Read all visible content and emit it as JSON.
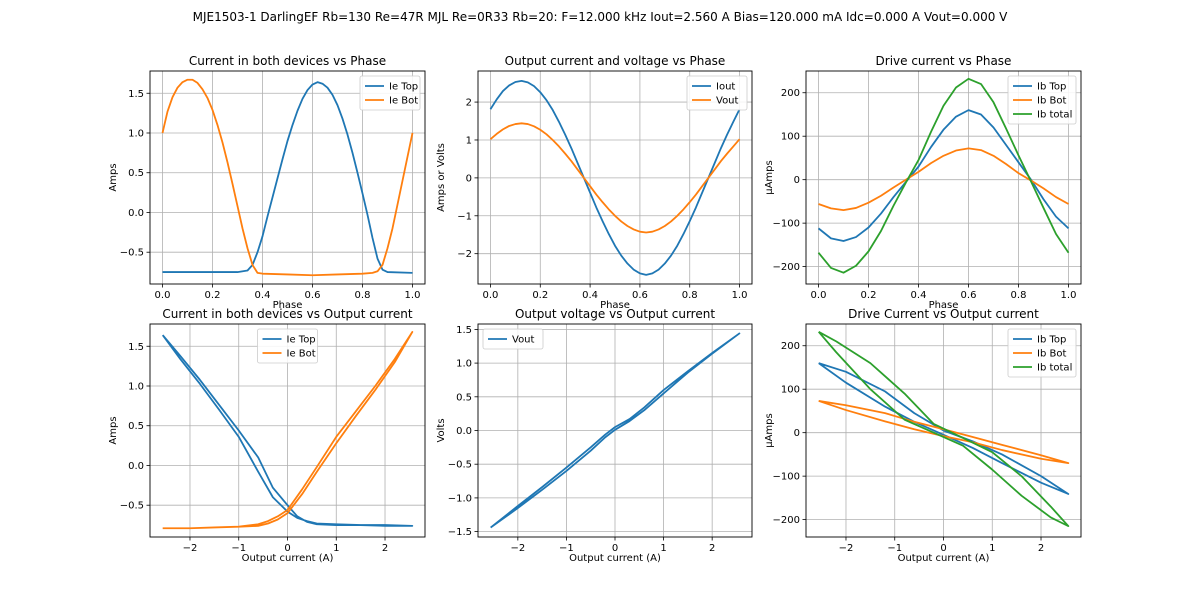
{
  "figure": {
    "suptitle": "MJE1503-1 DarlingEF Rb=130 Re=47R MJL Re=0R33 Rb=20: F=12.000 kHz Iout=2.560 A Bias=120.000 mA Idc=0.000 A Vout=0.000 V"
  },
  "chart_data": [
    {
      "type": "line",
      "title": "Current in both devices vs Phase",
      "xlabel": "Phase",
      "ylabel": "Amps",
      "xlim": [
        -0.05,
        1.05
      ],
      "ylim": [
        -0.9,
        1.78
      ],
      "xticks": [
        0.0,
        0.2,
        0.4,
        0.6,
        0.8,
        1.0
      ],
      "yticks": [
        -0.5,
        0.0,
        0.5,
        1.0,
        1.5
      ],
      "tick_decimals": [
        1,
        1
      ],
      "grid": true,
      "legend_position": "top-right",
      "series": [
        {
          "name": "Ie Top",
          "color": "#1f77b4",
          "x": [
            0,
            0.1,
            0.2,
            0.3,
            0.34,
            0.36,
            0.38,
            0.4,
            0.42,
            0.44,
            0.46,
            0.48,
            0.5,
            0.52,
            0.54,
            0.56,
            0.58,
            0.6,
            0.62,
            0.64,
            0.66,
            0.68,
            0.7,
            0.72,
            0.74,
            0.76,
            0.78,
            0.8,
            0.82,
            0.84,
            0.86,
            0.88,
            0.9,
            1.0
          ],
          "y": [
            -0.75,
            -0.75,
            -0.75,
            -0.75,
            -0.73,
            -0.66,
            -0.5,
            -0.3,
            -0.05,
            0.19,
            0.43,
            0.67,
            0.9,
            1.1,
            1.28,
            1.43,
            1.54,
            1.61,
            1.64,
            1.62,
            1.57,
            1.48,
            1.35,
            1.18,
            0.98,
            0.75,
            0.5,
            0.24,
            -0.03,
            -0.32,
            -0.58,
            -0.72,
            -0.75,
            -0.76
          ]
        },
        {
          "name": "Ie Bot",
          "color": "#ff7f0e",
          "x": [
            0,
            0.02,
            0.04,
            0.06,
            0.08,
            0.1,
            0.12,
            0.14,
            0.16,
            0.18,
            0.2,
            0.22,
            0.24,
            0.26,
            0.28,
            0.3,
            0.32,
            0.34,
            0.36,
            0.38,
            0.4,
            0.5,
            0.6,
            0.7,
            0.8,
            0.84,
            0.86,
            0.88,
            0.9,
            0.92,
            0.94,
            0.96,
            0.98,
            1.0
          ],
          "y": [
            1.0,
            1.27,
            1.45,
            1.57,
            1.64,
            1.67,
            1.67,
            1.63,
            1.55,
            1.44,
            1.29,
            1.1,
            0.88,
            0.63,
            0.36,
            0.08,
            -0.2,
            -0.45,
            -0.66,
            -0.76,
            -0.77,
            -0.78,
            -0.79,
            -0.78,
            -0.77,
            -0.76,
            -0.74,
            -0.66,
            -0.45,
            -0.2,
            0.1,
            0.4,
            0.7,
            1.0
          ]
        }
      ]
    },
    {
      "type": "line",
      "title": "Output current and voltage vs Phase",
      "xlabel": "Phase",
      "ylabel": "Amps or Volts",
      "xlim": [
        -0.05,
        1.05
      ],
      "ylim": [
        -2.8,
        2.82
      ],
      "xticks": [
        0.0,
        0.2,
        0.4,
        0.6,
        0.8,
        1.0
      ],
      "yticks": [
        -2,
        -1,
        0,
        1,
        2
      ],
      "tick_decimals": [
        1,
        0
      ],
      "grid": true,
      "legend_position": "top-right",
      "series": [
        {
          "name": "Iout",
          "color": "#1f77b4",
          "x": [
            0,
            0.025,
            0.05,
            0.075,
            0.1,
            0.125,
            0.15,
            0.175,
            0.2,
            0.225,
            0.25,
            0.275,
            0.3,
            0.325,
            0.35,
            0.375,
            0.4,
            0.425,
            0.45,
            0.475,
            0.5,
            0.525,
            0.55,
            0.575,
            0.6,
            0.625,
            0.65,
            0.675,
            0.7,
            0.725,
            0.75,
            0.775,
            0.8,
            0.825,
            0.85,
            0.875,
            0.9,
            0.925,
            0.95,
            0.975,
            1.0
          ],
          "y": [
            1.81,
            2.07,
            2.29,
            2.44,
            2.53,
            2.56,
            2.52,
            2.42,
            2.26,
            2.05,
            1.79,
            1.48,
            1.14,
            0.78,
            0.39,
            0.0,
            -0.39,
            -0.78,
            -1.14,
            -1.48,
            -1.79,
            -2.05,
            -2.26,
            -2.42,
            -2.52,
            -2.56,
            -2.52,
            -2.42,
            -2.26,
            -2.05,
            -1.79,
            -1.48,
            -1.14,
            -0.78,
            -0.39,
            0.0,
            0.39,
            0.78,
            1.14,
            1.48,
            1.81
          ]
        },
        {
          "name": "Vout",
          "color": "#ff7f0e",
          "x": [
            0,
            0.025,
            0.05,
            0.075,
            0.1,
            0.125,
            0.15,
            0.175,
            0.2,
            0.225,
            0.25,
            0.275,
            0.3,
            0.325,
            0.35,
            0.375,
            0.4,
            0.425,
            0.45,
            0.475,
            0.5,
            0.525,
            0.55,
            0.575,
            0.6,
            0.625,
            0.65,
            0.675,
            0.7,
            0.725,
            0.75,
            0.775,
            0.8,
            0.825,
            0.85,
            0.875,
            0.9,
            0.925,
            0.95,
            0.975,
            1.0
          ],
          "y": [
            1.02,
            1.16,
            1.28,
            1.37,
            1.42,
            1.44,
            1.42,
            1.36,
            1.27,
            1.15,
            1.0,
            0.83,
            0.64,
            0.44,
            0.22,
            0.0,
            -0.22,
            -0.44,
            -0.64,
            -0.83,
            -1.0,
            -1.15,
            -1.27,
            -1.36,
            -1.42,
            -1.44,
            -1.42,
            -1.36,
            -1.27,
            -1.15,
            -1.0,
            -0.83,
            -0.64,
            -0.44,
            -0.22,
            0.0,
            0.22,
            0.44,
            0.64,
            0.83,
            1.02
          ]
        }
      ]
    },
    {
      "type": "line",
      "title": "Drive current vs Phase",
      "xlabel": "Phase",
      "ylabel": "µAmps",
      "xlim": [
        -0.05,
        1.05
      ],
      "ylim": [
        -240,
        250
      ],
      "xticks": [
        0.0,
        0.2,
        0.4,
        0.6,
        0.8,
        1.0
      ],
      "yticks": [
        -200,
        -100,
        0,
        100,
        200
      ],
      "tick_decimals": [
        1,
        0
      ],
      "grid": true,
      "legend_position": "top-right",
      "series": [
        {
          "name": "Ib Top",
          "color": "#1f77b4",
          "x": [
            0,
            0.05,
            0.1,
            0.15,
            0.2,
            0.25,
            0.3,
            0.35,
            0.4,
            0.45,
            0.5,
            0.55,
            0.6,
            0.65,
            0.7,
            0.75,
            0.8,
            0.85,
            0.9,
            0.95,
            1.0
          ],
          "y": [
            -112,
            -135,
            -141,
            -132,
            -110,
            -78,
            -40,
            -5,
            30,
            75,
            115,
            145,
            160,
            150,
            120,
            80,
            40,
            0,
            -45,
            -85,
            -112
          ]
        },
        {
          "name": "Ib Bot",
          "color": "#ff7f0e",
          "x": [
            0,
            0.05,
            0.1,
            0.15,
            0.2,
            0.25,
            0.3,
            0.35,
            0.4,
            0.45,
            0.5,
            0.55,
            0.6,
            0.65,
            0.7,
            0.75,
            0.8,
            0.85,
            0.9,
            0.95,
            1.0
          ],
          "y": [
            -56,
            -66,
            -70,
            -65,
            -53,
            -37,
            -18,
            0,
            18,
            38,
            55,
            67,
            72,
            68,
            55,
            36,
            15,
            -2,
            -20,
            -40,
            -56
          ]
        },
        {
          "name": "Ib total",
          "color": "#2ca02c",
          "x": [
            0,
            0.05,
            0.1,
            0.15,
            0.2,
            0.25,
            0.3,
            0.35,
            0.4,
            0.45,
            0.5,
            0.55,
            0.6,
            0.65,
            0.7,
            0.75,
            0.8,
            0.85,
            0.9,
            0.95,
            1.0
          ],
          "y": [
            -168,
            -203,
            -214,
            -198,
            -165,
            -118,
            -60,
            -6,
            45,
            110,
            170,
            212,
            232,
            220,
            178,
            118,
            56,
            -4,
            -65,
            -125,
            -168
          ]
        }
      ]
    },
    {
      "type": "line",
      "title": "Current in both devices vs Output current",
      "xlabel": "Output current (A)",
      "ylabel": "Amps",
      "xlim": [
        -2.82,
        2.82
      ],
      "ylim": [
        -0.9,
        1.78
      ],
      "xticks": [
        -2,
        -1,
        0,
        1,
        2
      ],
      "yticks": [
        -0.5,
        0.0,
        0.5,
        1.0,
        1.5
      ],
      "tick_decimals": [
        0,
        1
      ],
      "grid": true,
      "legend_position": "top-center",
      "series": [
        {
          "name": "Ie Top",
          "color": "#1f77b4",
          "x": [
            -2.56,
            -2.2,
            -1.8,
            -1.4,
            -1.0,
            -0.6,
            -0.3,
            0.0,
            0.2,
            0.4,
            0.6,
            1.0,
            1.5,
            2.0,
            2.56,
            2.0,
            1.5,
            1.0,
            0.6,
            0.4,
            0.2,
            0.0,
            -0.3,
            -0.6,
            -1.0,
            -1.4,
            -1.8,
            -2.2,
            -2.56
          ],
          "y": [
            1.64,
            1.38,
            1.08,
            0.76,
            0.44,
            0.1,
            -0.28,
            -0.5,
            -0.64,
            -0.71,
            -0.74,
            -0.75,
            -0.75,
            -0.76,
            -0.76,
            -0.75,
            -0.75,
            -0.74,
            -0.73,
            -0.7,
            -0.66,
            -0.58,
            -0.4,
            -0.08,
            0.36,
            0.7,
            1.03,
            1.34,
            1.64
          ]
        },
        {
          "name": "Ie Bot",
          "color": "#ff7f0e",
          "x": [
            -2.56,
            -2.0,
            -1.5,
            -1.0,
            -0.6,
            -0.4,
            -0.2,
            0.0,
            0.3,
            0.6,
            1.0,
            1.4,
            1.8,
            2.2,
            2.56,
            2.2,
            1.8,
            1.4,
            1.0,
            0.6,
            0.3,
            0.0,
            -0.2,
            -0.4,
            -0.6,
            -1.0,
            -1.5,
            -2.0,
            -2.56
          ],
          "y": [
            -0.79,
            -0.79,
            -0.78,
            -0.77,
            -0.76,
            -0.73,
            -0.68,
            -0.6,
            -0.36,
            -0.08,
            0.28,
            0.62,
            0.95,
            1.3,
            1.68,
            1.34,
            1.0,
            0.68,
            0.36,
            -0.02,
            -0.3,
            -0.56,
            -0.64,
            -0.7,
            -0.74,
            -0.77,
            -0.78,
            -0.79,
            -0.79
          ]
        }
      ]
    },
    {
      "type": "line",
      "title": "Output voltage vs Output current",
      "xlabel": "Output current (A)",
      "ylabel": "Volts",
      "xlim": [
        -2.82,
        2.82
      ],
      "ylim": [
        -1.58,
        1.58
      ],
      "xticks": [
        -2,
        -1,
        0,
        1,
        2
      ],
      "yticks": [
        -1.5,
        -1.0,
        -0.5,
        0.0,
        0.5,
        1.0,
        1.5
      ],
      "tick_decimals": [
        0,
        1
      ],
      "grid": true,
      "legend_position": "top-left",
      "series": [
        {
          "name": "Vout",
          "color": "#1f77b4",
          "x": [
            -2.56,
            -2.0,
            -1.5,
            -1.0,
            -0.5,
            -0.2,
            0.0,
            0.3,
            0.6,
            1.0,
            1.5,
            2.0,
            2.56,
            2.0,
            1.5,
            1.0,
            0.6,
            0.3,
            0.0,
            -0.2,
            -0.5,
            -1.0,
            -1.5,
            -2.0,
            -2.56
          ],
          "y": [
            -1.44,
            -1.15,
            -0.88,
            -0.6,
            -0.3,
            -0.1,
            0.01,
            0.14,
            0.3,
            0.55,
            0.86,
            1.14,
            1.44,
            1.15,
            0.88,
            0.6,
            0.34,
            0.17,
            0.05,
            -0.06,
            -0.25,
            -0.55,
            -0.84,
            -1.12,
            -1.44
          ]
        }
      ]
    },
    {
      "type": "line",
      "title": "Drive Current vs Output current",
      "xlabel": "Output current (A)",
      "ylabel": "µAmps",
      "xlim": [
        -2.82,
        2.82
      ],
      "ylim": [
        -240,
        250
      ],
      "xticks": [
        -2,
        -1,
        0,
        1,
        2
      ],
      "yticks": [
        -200,
        -100,
        0,
        100,
        200
      ],
      "tick_decimals": [
        0,
        0
      ],
      "grid": true,
      "legend_position": "top-right",
      "series": [
        {
          "name": "Ib Top",
          "color": "#1f77b4",
          "x": [
            -2.56,
            -2.0,
            -1.2,
            -0.6,
            0.0,
            0.6,
            1.2,
            2.0,
            2.56,
            2.0,
            1.2,
            0.6,
            0.0,
            -0.6,
            -1.2,
            -2.0,
            -2.56
          ],
          "y": [
            160,
            140,
            95,
            45,
            5,
            -20,
            -50,
            -100,
            -141,
            -115,
            -70,
            -35,
            -5,
            25,
            60,
            115,
            160
          ]
        },
        {
          "name": "Ib Bot",
          "color": "#ff7f0e",
          "x": [
            -2.56,
            -2.0,
            -1.2,
            -0.6,
            0.0,
            0.6,
            1.2,
            2.0,
            2.56,
            2.0,
            1.2,
            0.6,
            0.0,
            -0.6,
            -1.2,
            -2.0,
            -2.56
          ],
          "y": [
            73,
            63,
            45,
            25,
            8,
            -10,
            -28,
            -52,
            -70,
            -60,
            -40,
            -22,
            -8,
            8,
            26,
            52,
            73
          ]
        },
        {
          "name": "Ib total",
          "color": "#2ca02c",
          "x": [
            -2.56,
            -2.2,
            -1.5,
            -0.8,
            -0.2,
            0.4,
            1.0,
            1.6,
            2.2,
            2.56,
            2.2,
            1.6,
            1.0,
            0.4,
            -0.2,
            -0.8,
            -1.5,
            -2.2,
            -2.56
          ],
          "y": [
            232,
            210,
            160,
            90,
            20,
            -12,
            -45,
            -100,
            -170,
            -215,
            -195,
            -145,
            -85,
            -30,
            0,
            30,
            100,
            185,
            232
          ]
        }
      ]
    }
  ]
}
